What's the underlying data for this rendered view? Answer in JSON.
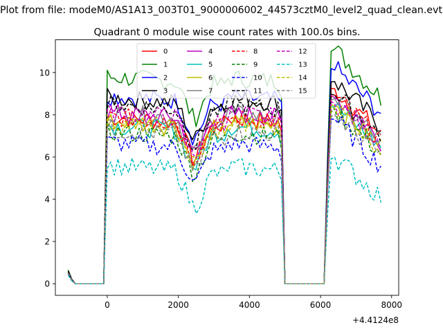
{
  "suptitle": "Plot from file: modeM0/AS1A13_003T01_9000006002_44573cztM0_level2_quad_clean.evt",
  "title": "Quadrant 0 module wise count rates with 100.0s bins.",
  "chart_data": {
    "type": "line",
    "title": "Quadrant 0 module wise count rates with 100.0s bins.",
    "xlabel": "",
    "ylabel": "",
    "x_offset_label": "+4.4124e8",
    "xlim": [
      -1460,
      8200
    ],
    "ylim": [
      -0.55,
      11.55
    ],
    "xticks": [
      0,
      2000,
      4000,
      6000,
      8000
    ],
    "yticks": [
      0,
      2,
      4,
      6,
      8,
      10
    ],
    "grid": false,
    "legend_position": "top-center",
    "legend_columns": 4,
    "series": [
      {
        "name": "0",
        "color": "#ff0000",
        "dash": "solid"
      },
      {
        "name": "1",
        "color": "#008000",
        "dash": "solid"
      },
      {
        "name": "2",
        "color": "#0000ff",
        "dash": "solid"
      },
      {
        "name": "3",
        "color": "#000000",
        "dash": "solid"
      },
      {
        "name": "4",
        "color": "#bf00bf",
        "dash": "solid"
      },
      {
        "name": "5",
        "color": "#00bfbf",
        "dash": "solid"
      },
      {
        "name": "6",
        "color": "#bfbf00",
        "dash": "solid"
      },
      {
        "name": "7",
        "color": "#808080",
        "dash": "solid"
      },
      {
        "name": "8",
        "color": "#ff0000",
        "dash": "dashed"
      },
      {
        "name": "9",
        "color": "#008000",
        "dash": "dashed"
      },
      {
        "name": "10",
        "color": "#0000ff",
        "dash": "dashed"
      },
      {
        "name": "11",
        "color": "#000000",
        "dash": "dashed"
      },
      {
        "name": "12",
        "color": "#bf00bf",
        "dash": "dashed"
      },
      {
        "name": "13",
        "color": "#00bfbf",
        "dash": "dashed"
      },
      {
        "name": "14",
        "color": "#bfbf00",
        "dash": "dashed"
      },
      {
        "name": "15",
        "color": "#808080",
        "dash": "dashed"
      }
    ],
    "segments": [
      {
        "x": [
          -1100,
          -1000,
          -900,
          -800,
          -700,
          -600,
          -500,
          -400,
          -300,
          -200
        ],
        "level": "zero_start"
      },
      {
        "x": [
          -100,
          0,
          100,
          200,
          300,
          400,
          500,
          600,
          700,
          800,
          900,
          1000,
          1100,
          1200,
          1300,
          1400,
          1500,
          1600,
          1700,
          1800,
          1900,
          2000,
          2100,
          2200,
          2300,
          2400,
          2500,
          2600,
          2700,
          2800,
          2900,
          3000,
          3100,
          3200,
          3300,
          3400,
          3500,
          3600,
          3700,
          3800,
          3900,
          4000,
          4100,
          4200,
          4300,
          4400,
          4500,
          4600,
          4700,
          4800,
          4900,
          5000
        ],
        "level": "orbit_1"
      },
      {
        "x": [
          5100,
          5200,
          5300,
          5400,
          5500,
          5600,
          5700,
          5800,
          5900,
          6000,
          6100
        ],
        "level": "zero_gap"
      },
      {
        "x": [
          6200,
          6300,
          6400,
          6500,
          6600,
          6700,
          6800,
          6900,
          7000,
          7100,
          7200,
          7300,
          7400,
          7500,
          7600,
          7700
        ],
        "level": "orbit_2"
      }
    ],
    "series_levels": {
      "0": {
        "first": 0.55,
        "orbit_1": 7.0,
        "orbit_2": 8.3,
        "peak": 9.2
      },
      "1": {
        "first": 0.65,
        "orbit_1": 8.9,
        "orbit_2": 10.0,
        "peak": 11.1
      },
      "2": {
        "first": 0.6,
        "orbit_1": 8.0,
        "orbit_2": 9.3,
        "peak": 10.2
      },
      "3": {
        "first": 0.6,
        "orbit_1": 7.9,
        "orbit_2": 8.7,
        "peak": 9.6
      },
      "4": {
        "first": 0.5,
        "orbit_1": 7.2,
        "orbit_2": 8.0,
        "peak": 8.9
      },
      "5": {
        "first": 0.5,
        "orbit_1": 6.6,
        "orbit_2": 7.7,
        "peak": 8.4
      },
      "6": {
        "first": 0.5,
        "orbit_1": 6.8,
        "orbit_2": 7.7,
        "peak": 8.5
      },
      "7": {
        "first": 0.5,
        "orbit_1": 7.2,
        "orbit_2": 8.0,
        "peak": 8.8
      },
      "8": {
        "first": 0.55,
        "orbit_1": 7.0,
        "orbit_2": 8.0,
        "peak": 8.9
      },
      "9": {
        "first": 0.5,
        "orbit_1": 6.3,
        "orbit_2": 7.4,
        "peak": 8.2
      },
      "10": {
        "first": 0.45,
        "orbit_1": 5.8,
        "orbit_2": 6.8,
        "peak": 7.8
      },
      "11": {
        "first": 0.55,
        "orbit_1": 7.6,
        "orbit_2": 8.2,
        "peak": 9.0
      },
      "12": {
        "first": 0.5,
        "orbit_1": 7.2,
        "orbit_2": 7.9,
        "peak": 8.6
      },
      "13": {
        "first": 0.4,
        "orbit_1": 4.7,
        "orbit_2": 5.3,
        "peak": 6.0
      },
      "14": {
        "first": 0.5,
        "orbit_1": 6.7,
        "orbit_2": 7.6,
        "peak": 8.4
      },
      "15": {
        "first": 0.5,
        "orbit_1": 6.4,
        "orbit_2": 7.3,
        "peak": 8.0
      }
    }
  }
}
